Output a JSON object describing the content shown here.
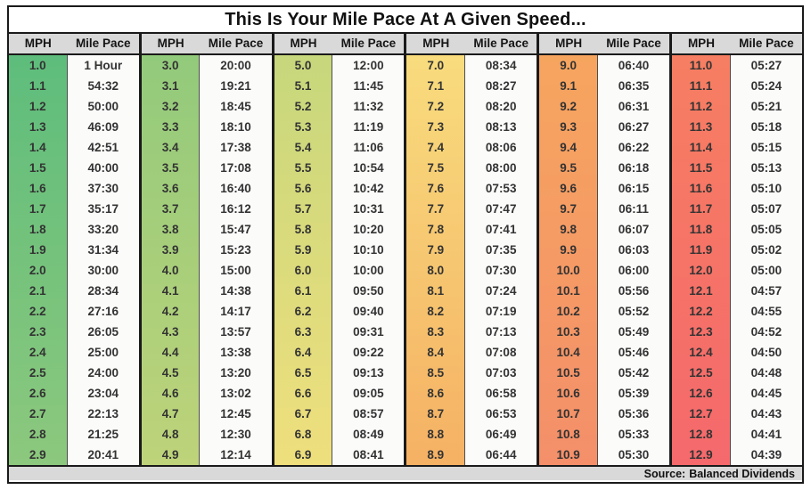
{
  "title": "This Is Your Mile Pace At A Given Speed...",
  "header": {
    "mph": "MPH",
    "pace": "Mile Pace"
  },
  "footer": {
    "source_label": "Source:",
    "source_value": "Balanced Dividends"
  },
  "colors": {
    "border": "#1a1a1a",
    "header_bg": "#d9d9d9",
    "footer_bg": "#d9d9d9",
    "pace_bg": "#fbfbfa",
    "scale_green": "#5ebd7c",
    "scale_yellow": "#f2df7d",
    "scale_red": "#f5696c"
  },
  "chart_data": {
    "type": "table",
    "title": "This Is Your Mile Pace At A Given Speed...",
    "source": "Source: Balanced Dividends",
    "column_headers": [
      "MPH",
      "Mile Pace"
    ],
    "legend_note": "MPH cells colored on a green-to-red scale from 1.0 to 12.9",
    "groups": [
      {
        "color_top": "#5ebd7c",
        "color_bottom": "#8cc87d",
        "rows": [
          {
            "mph": "1.0",
            "pace": "1 Hour"
          },
          {
            "mph": "1.1",
            "pace": "54:32"
          },
          {
            "mph": "1.2",
            "pace": "50:00"
          },
          {
            "mph": "1.3",
            "pace": "46:09"
          },
          {
            "mph": "1.4",
            "pace": "42:51"
          },
          {
            "mph": "1.5",
            "pace": "40:00"
          },
          {
            "mph": "1.6",
            "pace": "37:30"
          },
          {
            "mph": "1.7",
            "pace": "35:17"
          },
          {
            "mph": "1.8",
            "pace": "33:20"
          },
          {
            "mph": "1.9",
            "pace": "31:34"
          },
          {
            "mph": "2.0",
            "pace": "30:00"
          },
          {
            "mph": "2.1",
            "pace": "28:34"
          },
          {
            "mph": "2.2",
            "pace": "27:16"
          },
          {
            "mph": "2.3",
            "pace": "26:05"
          },
          {
            "mph": "2.4",
            "pace": "25:00"
          },
          {
            "mph": "2.5",
            "pace": "24:00"
          },
          {
            "mph": "2.6",
            "pace": "23:04"
          },
          {
            "mph": "2.7",
            "pace": "22:13"
          },
          {
            "mph": "2.8",
            "pace": "21:25"
          },
          {
            "mph": "2.9",
            "pace": "20:41"
          }
        ]
      },
      {
        "color_top": "#92ca7b",
        "color_bottom": "#bed37a",
        "rows": [
          {
            "mph": "3.0",
            "pace": "20:00"
          },
          {
            "mph": "3.1",
            "pace": "19:21"
          },
          {
            "mph": "3.2",
            "pace": "18:45"
          },
          {
            "mph": "3.3",
            "pace": "18:10"
          },
          {
            "mph": "3.4",
            "pace": "17:38"
          },
          {
            "mph": "3.5",
            "pace": "17:08"
          },
          {
            "mph": "3.6",
            "pace": "16:40"
          },
          {
            "mph": "3.7",
            "pace": "16:12"
          },
          {
            "mph": "3.8",
            "pace": "15:47"
          },
          {
            "mph": "3.9",
            "pace": "15:23"
          },
          {
            "mph": "4.0",
            "pace": "15:00"
          },
          {
            "mph": "4.1",
            "pace": "14:38"
          },
          {
            "mph": "4.2",
            "pace": "14:17"
          },
          {
            "mph": "4.3",
            "pace": "13:57"
          },
          {
            "mph": "4.4",
            "pace": "13:38"
          },
          {
            "mph": "4.5",
            "pace": "13:20"
          },
          {
            "mph": "4.6",
            "pace": "13:02"
          },
          {
            "mph": "4.7",
            "pace": "12:45"
          },
          {
            "mph": "4.8",
            "pace": "12:30"
          },
          {
            "mph": "4.9",
            "pace": "12:14"
          }
        ]
      },
      {
        "color_top": "#c7d77c",
        "color_bottom": "#efdf7d",
        "rows": [
          {
            "mph": "5.0",
            "pace": "12:00"
          },
          {
            "mph": "5.1",
            "pace": "11:45"
          },
          {
            "mph": "5.2",
            "pace": "11:32"
          },
          {
            "mph": "5.3",
            "pace": "11:19"
          },
          {
            "mph": "5.4",
            "pace": "11:06"
          },
          {
            "mph": "5.5",
            "pace": "10:54"
          },
          {
            "mph": "5.6",
            "pace": "10:42"
          },
          {
            "mph": "5.7",
            "pace": "10:31"
          },
          {
            "mph": "5.8",
            "pace": "10:20"
          },
          {
            "mph": "5.9",
            "pace": "10:10"
          },
          {
            "mph": "6.0",
            "pace": "10:00"
          },
          {
            "mph": "6.1",
            "pace": "09:50"
          },
          {
            "mph": "6.2",
            "pace": "09:40"
          },
          {
            "mph": "6.3",
            "pace": "09:31"
          },
          {
            "mph": "6.4",
            "pace": "09:22"
          },
          {
            "mph": "6.5",
            "pace": "09:13"
          },
          {
            "mph": "6.6",
            "pace": "09:05"
          },
          {
            "mph": "6.7",
            "pace": "08:57"
          },
          {
            "mph": "6.8",
            "pace": "08:49"
          },
          {
            "mph": "6.9",
            "pace": "08:41"
          }
        ]
      },
      {
        "color_top": "#f8dc7d",
        "color_bottom": "#f5b164",
        "rows": [
          {
            "mph": "7.0",
            "pace": "08:34"
          },
          {
            "mph": "7.1",
            "pace": "08:27"
          },
          {
            "mph": "7.2",
            "pace": "08:20"
          },
          {
            "mph": "7.3",
            "pace": "08:13"
          },
          {
            "mph": "7.4",
            "pace": "08:06"
          },
          {
            "mph": "7.5",
            "pace": "08:00"
          },
          {
            "mph": "7.6",
            "pace": "07:53"
          },
          {
            "mph": "7.7",
            "pace": "07:47"
          },
          {
            "mph": "7.8",
            "pace": "07:41"
          },
          {
            "mph": "7.9",
            "pace": "07:35"
          },
          {
            "mph": "8.0",
            "pace": "07:30"
          },
          {
            "mph": "8.1",
            "pace": "07:24"
          },
          {
            "mph": "8.2",
            "pace": "07:19"
          },
          {
            "mph": "8.3",
            "pace": "07:13"
          },
          {
            "mph": "8.4",
            "pace": "07:08"
          },
          {
            "mph": "8.5",
            "pace": "07:03"
          },
          {
            "mph": "8.6",
            "pace": "06:58"
          },
          {
            "mph": "8.7",
            "pace": "06:53"
          },
          {
            "mph": "8.8",
            "pace": "06:49"
          },
          {
            "mph": "8.9",
            "pace": "06:44"
          }
        ]
      },
      {
        "color_top": "#f6a55f",
        "color_bottom": "#f48f6a",
        "rows": [
          {
            "mph": "9.0",
            "pace": "06:40"
          },
          {
            "mph": "9.1",
            "pace": "06:35"
          },
          {
            "mph": "9.2",
            "pace": "06:31"
          },
          {
            "mph": "9.3",
            "pace": "06:27"
          },
          {
            "mph": "9.4",
            "pace": "06:22"
          },
          {
            "mph": "9.5",
            "pace": "06:18"
          },
          {
            "mph": "9.6",
            "pace": "06:15"
          },
          {
            "mph": "9.7",
            "pace": "06:11"
          },
          {
            "mph": "9.8",
            "pace": "06:07"
          },
          {
            "mph": "9.9",
            "pace": "06:03"
          },
          {
            "mph": "10.0",
            "pace": "06:00"
          },
          {
            "mph": "10.1",
            "pace": "05:56"
          },
          {
            "mph": "10.2",
            "pace": "05:52"
          },
          {
            "mph": "10.3",
            "pace": "05:49"
          },
          {
            "mph": "10.4",
            "pace": "05:46"
          },
          {
            "mph": "10.5",
            "pace": "05:42"
          },
          {
            "mph": "10.6",
            "pace": "05:39"
          },
          {
            "mph": "10.7",
            "pace": "05:36"
          },
          {
            "mph": "10.8",
            "pace": "05:33"
          },
          {
            "mph": "10.9",
            "pace": "05:30"
          }
        ]
      },
      {
        "color_top": "#f67e62",
        "color_bottom": "#f5696c",
        "rows": [
          {
            "mph": "11.0",
            "pace": "05:27"
          },
          {
            "mph": "11.1",
            "pace": "05:24"
          },
          {
            "mph": "11.2",
            "pace": "05:21"
          },
          {
            "mph": "11.3",
            "pace": "05:18"
          },
          {
            "mph": "11.4",
            "pace": "05:15"
          },
          {
            "mph": "11.5",
            "pace": "05:13"
          },
          {
            "mph": "11.6",
            "pace": "05:10"
          },
          {
            "mph": "11.7",
            "pace": "05:07"
          },
          {
            "mph": "11.8",
            "pace": "05:05"
          },
          {
            "mph": "11.9",
            "pace": "05:02"
          },
          {
            "mph": "12.0",
            "pace": "05:00"
          },
          {
            "mph": "12.1",
            "pace": "04:57"
          },
          {
            "mph": "12.2",
            "pace": "04:55"
          },
          {
            "mph": "12.3",
            "pace": "04:52"
          },
          {
            "mph": "12.4",
            "pace": "04:50"
          },
          {
            "mph": "12.5",
            "pace": "04:48"
          },
          {
            "mph": "12.6",
            "pace": "04:45"
          },
          {
            "mph": "12.7",
            "pace": "04:43"
          },
          {
            "mph": "12.8",
            "pace": "04:41"
          },
          {
            "mph": "12.9",
            "pace": "04:39"
          }
        ]
      }
    ]
  }
}
